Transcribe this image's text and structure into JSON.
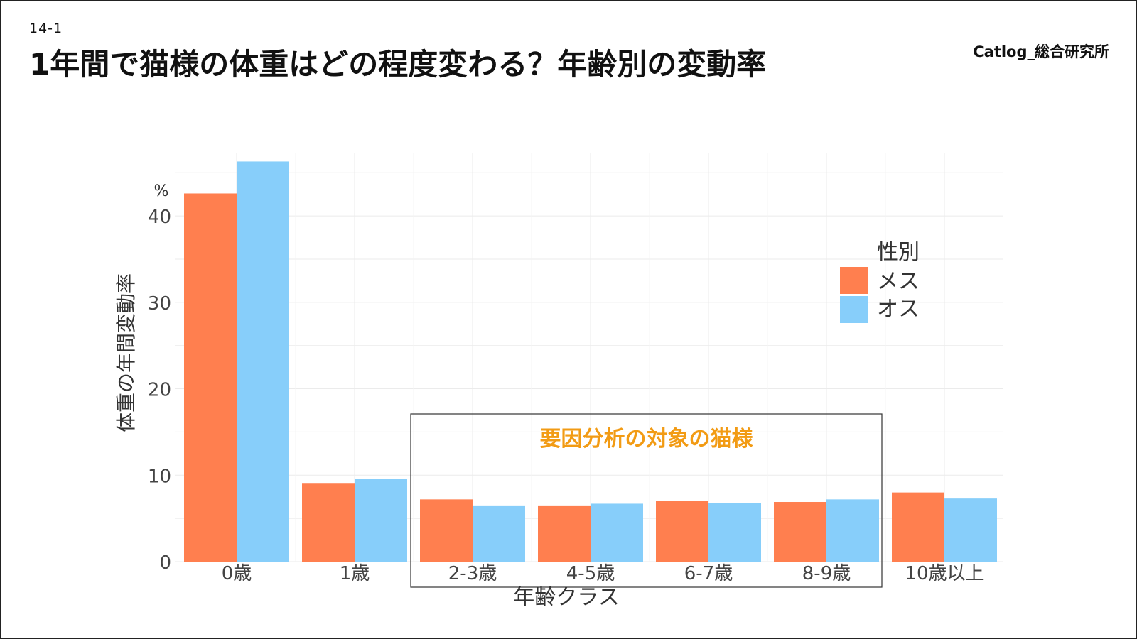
{
  "slide": {
    "number": "14-1",
    "title": "1年間で猫様の体重はどの程度変わる？年齢別の変動率",
    "brand": "Catlog_総合研究所"
  },
  "chart_data": {
    "type": "bar",
    "categories": [
      "0歳",
      "1歳",
      "2-3歳",
      "4-5歳",
      "6-7歳",
      "8-9歳",
      "10歳以上"
    ],
    "series": [
      {
        "name": "メス",
        "color": "#FF7F4F",
        "values": [
          42.6,
          9.1,
          7.2,
          6.5,
          7.0,
          6.9,
          8.0
        ]
      },
      {
        "name": "オス",
        "color": "#87CEFA",
        "values": [
          46.3,
          9.6,
          6.5,
          6.7,
          6.8,
          7.2,
          7.3
        ]
      }
    ],
    "xlabel": "年齢クラス",
    "ylabel": "体重の年間変動率",
    "y_unit": "%",
    "ylim": [
      0,
      46.5
    ],
    "yticks": [
      0,
      10,
      20,
      30,
      40
    ],
    "grid": true,
    "legend": {
      "title": "性別",
      "position": "right"
    },
    "annotation": {
      "text": "要因分析の対象の猫様",
      "color": "#F29B14",
      "from_category": "2-3歳",
      "to_category": "8-9歳"
    }
  }
}
